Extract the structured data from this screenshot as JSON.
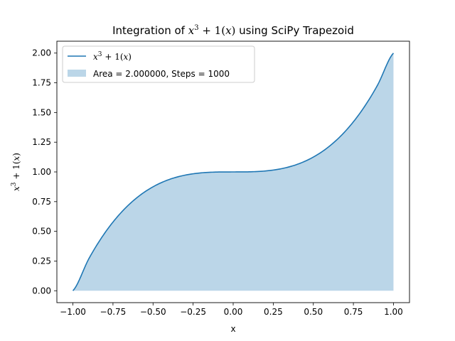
{
  "chart_data": {
    "type": "area",
    "title": "Integration of x^3 + 1(x) using SciPy Trapezoid",
    "title_parts": {
      "prefix": "Integration of ",
      "math_base": "x",
      "math_exp": "3",
      "math_rest": " + 1(",
      "math_var": "x",
      "math_close": ")",
      "suffix": " using SciPy Trapezoid"
    },
    "xlabel": "x",
    "ylabel": "x^3 + 1(x)",
    "ylabel_parts": {
      "base": "x",
      "exp": "3",
      "rest": " + 1(",
      "var": "x",
      "close": ")"
    },
    "xlim": [
      -1.1,
      1.1
    ],
    "ylim": [
      -0.1,
      2.1
    ],
    "xticks": [
      -1.0,
      -0.75,
      -0.5,
      -0.25,
      0.0,
      0.25,
      0.5,
      0.75,
      1.0
    ],
    "xtick_labels": [
      "−1.00",
      "−0.75",
      "−0.50",
      "−0.25",
      "0.00",
      "0.25",
      "0.50",
      "0.75",
      "1.00"
    ],
    "yticks": [
      0.0,
      0.25,
      0.5,
      0.75,
      1.0,
      1.25,
      1.5,
      1.75,
      2.0
    ],
    "ytick_labels": [
      "0.00",
      "0.25",
      "0.50",
      "0.75",
      "1.00",
      "1.25",
      "1.50",
      "1.75",
      "2.00"
    ],
    "grid": false,
    "legend_position": "upper-left",
    "series": [
      {
        "kind": "line",
        "label_parts": {
          "base": "x",
          "exp": "3",
          "rest": " + 1(",
          "var": "x",
          "close": ")"
        },
        "color": "#1f77b4",
        "x": [
          -1.0,
          -0.9,
          -0.8,
          -0.7,
          -0.6,
          -0.5,
          -0.4,
          -0.3,
          -0.2,
          -0.1,
          0.0,
          0.1,
          0.2,
          0.3,
          0.4,
          0.5,
          0.6,
          0.7,
          0.8,
          0.9,
          1.0
        ],
        "y": [
          0.0,
          0.271,
          0.488,
          0.657,
          0.784,
          0.875,
          0.936,
          0.973,
          0.992,
          0.999,
          1.0,
          1.001,
          1.008,
          1.027,
          1.064,
          1.125,
          1.216,
          1.343,
          1.512,
          1.729,
          2.0
        ]
      },
      {
        "kind": "fill",
        "label": "Area = 2.000000, Steps = 1000",
        "color": "#1f77b4",
        "opacity": 0.3,
        "baseline": 0.0
      }
    ]
  }
}
